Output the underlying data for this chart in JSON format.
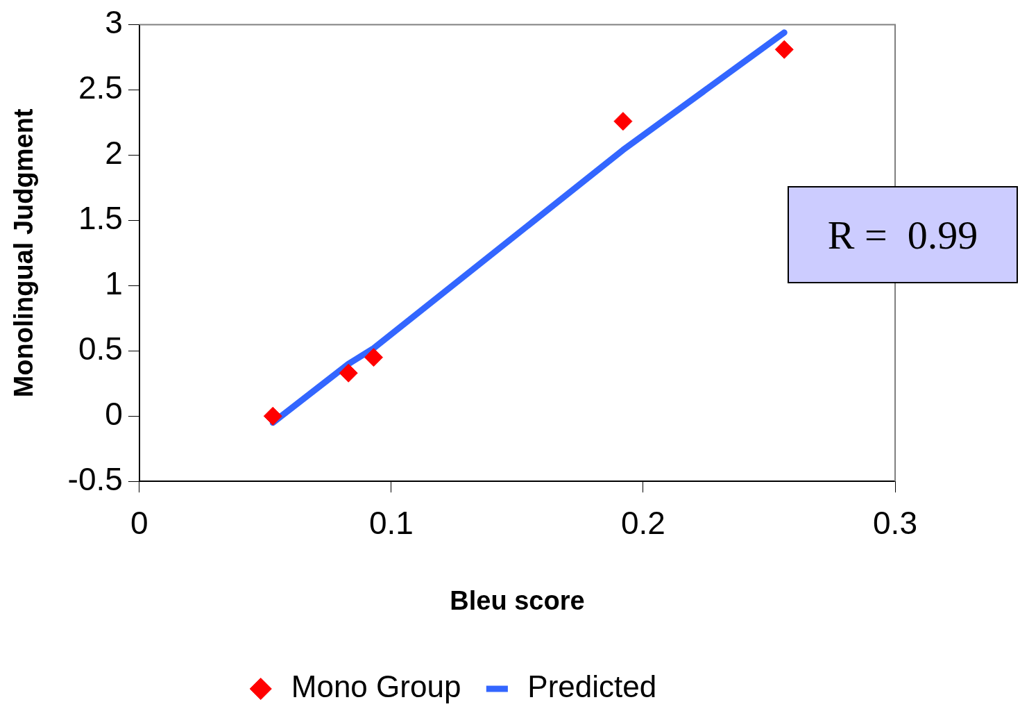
{
  "chart_data": {
    "type": "scatter",
    "xlabel": "Bleu score",
    "ylabel": "Monolingual Judgment",
    "annotations": [
      "R =  0.99"
    ],
    "xlim": [
      0,
      0.3
    ],
    "xticks": [
      0,
      0.1,
      0.2,
      0.3
    ],
    "ylim": [
      -0.5,
      3
    ],
    "yticks": [
      -0.5,
      0,
      0.5,
      1,
      1.5,
      2,
      2.5,
      3
    ],
    "grid": false,
    "legend": "bottom",
    "series": [
      {
        "name": "Mono Group",
        "type": "scatter",
        "marker": "diamond",
        "color": "#ff0000",
        "x": [
          0.053,
          0.083,
          0.093,
          0.192,
          0.256
        ],
        "values": [
          0,
          0.33,
          0.45,
          2.26,
          2.81
        ]
      },
      {
        "name": "Predicted",
        "type": "line",
        "marker": "none",
        "line_style": "solid",
        "color": "#3366ff",
        "x": [
          0.053,
          0.083,
          0.093,
          0.192,
          0.256
        ],
        "values": [
          -0.05,
          0.4,
          0.52,
          2.04,
          2.94
        ]
      }
    ]
  }
}
